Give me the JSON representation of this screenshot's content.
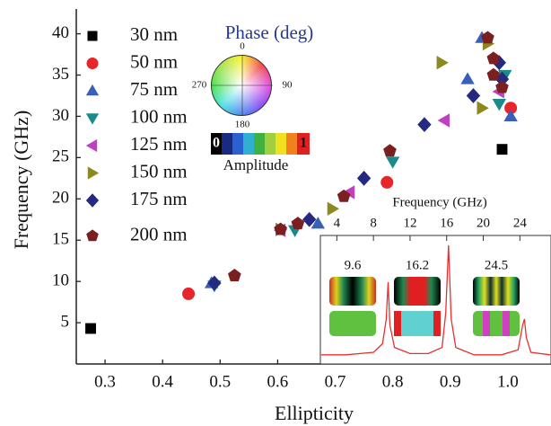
{
  "chart_data": [
    {
      "type": "scatter",
      "x_label": "Ellipticity",
      "y_label": "Frequency (GHz)",
      "xlim": [
        0.25,
        1.075
      ],
      "ylim": [
        0,
        43
      ],
      "xticks": [
        0.3,
        0.4,
        0.5,
        0.6,
        0.7,
        0.8,
        0.9,
        {
          "value": 1,
          "label": "1.0"
        }
      ],
      "yticks": [
        5,
        10,
        15,
        20,
        25,
        30,
        35,
        40
      ],
      "legend": "upper left",
      "series": [
        {
          "name": "30 nm",
          "color": "#000000",
          "marker": "square",
          "x": [
            0.275,
            0.99
          ],
          "values": [
            4.3,
            26
          ]
        },
        {
          "name": "50 nm",
          "color": "#e8252a",
          "marker": "circle",
          "x": [
            0.445,
            0.79,
            1.005
          ],
          "values": [
            8.5,
            22,
            31
          ]
        },
        {
          "name": "75 nm",
          "color": "#3a5fb8",
          "marker": "triangle-up",
          "x": [
            0.485,
            0.67,
            0.93,
            0.955,
            1.005
          ],
          "values": [
            9.8,
            17,
            34.5,
            39.5,
            30
          ]
        },
        {
          "name": "100 nm",
          "color": "#1a8a8a",
          "marker": "triangle-down",
          "x": [
            0.49,
            0.63,
            0.8,
            0.985,
            0.995
          ],
          "values": [
            9.5,
            16.2,
            24.5,
            31.5,
            35
          ]
        },
        {
          "name": "125 nm",
          "color": "#c040c0",
          "marker": "triangle-left",
          "x": [
            0.605,
            0.725,
            0.89,
            0.985
          ],
          "values": [
            16.2,
            20.8,
            29.5,
            33
          ]
        },
        {
          "name": "150 nm",
          "color": "#8a8a20",
          "marker": "triangle-right",
          "x": [
            0.605,
            0.695,
            0.885,
            0.955,
            0.965
          ],
          "values": [
            16.3,
            18.8,
            36.5,
            31,
            38.8
          ]
        },
        {
          "name": "175 nm",
          "color": "#252a80",
          "marker": "diamond",
          "x": [
            0.49,
            0.655,
            0.75,
            0.855,
            0.94,
            0.985,
            0.99
          ],
          "values": [
            9.8,
            17.5,
            22.5,
            29,
            32.5,
            36.5,
            34.5
          ]
        },
        {
          "name": "200 nm",
          "color": "#7a2020",
          "marker": "pentagon",
          "x": [
            0.525,
            0.605,
            0.635,
            0.715,
            0.795,
            0.965,
            0.975,
            0.975,
            0.99
          ],
          "values": [
            10.7,
            16.3,
            17,
            20.3,
            25.8,
            39.5,
            37,
            35,
            33.5
          ]
        }
      ],
      "phase_legend": {
        "title": "Phase (deg)",
        "labels": [
          "0",
          "90",
          "180",
          "270"
        ]
      },
      "amplitude_legend": {
        "title": "Amplitude",
        "labels": [
          "0",
          "1"
        ]
      }
    },
    {
      "type": "line",
      "x_label": "Frequency (GHz)",
      "xlim": [
        2.2,
        27.4
      ],
      "ylim": [
        0,
        1
      ],
      "xticks": [
        4,
        8,
        12,
        16,
        20,
        24
      ],
      "annotations": [
        "9.6",
        "16.2",
        "24.5"
      ],
      "series": [
        {
          "color": "#e83030",
          "x": [
            2.3,
            5,
            8,
            9,
            9.4,
            9.6,
            9.8,
            10.3,
            12,
            14,
            15.5,
            15.9,
            16.2,
            16.5,
            17,
            19,
            22,
            23.8,
            24.3,
            24.5,
            24.7,
            25.2,
            27.3
          ],
          "values": [
            0.06,
            0.06,
            0.08,
            0.15,
            0.35,
            0.65,
            0.3,
            0.12,
            0.07,
            0.07,
            0.12,
            0.4,
            0.95,
            0.35,
            0.12,
            0.06,
            0.06,
            0.1,
            0.3,
            0.35,
            0.2,
            0.08,
            0.06
          ]
        }
      ]
    }
  ]
}
